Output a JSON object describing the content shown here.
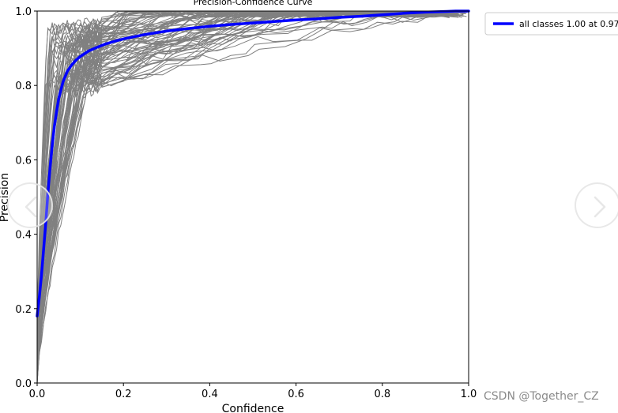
{
  "chart_data": {
    "type": "line",
    "title": "Precision-Confidence Curve",
    "xlabel": "Confidence",
    "ylabel": "Precision",
    "xlim": [
      0.0,
      1.0
    ],
    "ylim": [
      0.0,
      1.0
    ],
    "xticks": [
      "0.0",
      "0.2",
      "0.4",
      "0.6",
      "0.8",
      "1.0"
    ],
    "yticks": [
      "0.0",
      "0.2",
      "0.4",
      "0.6",
      "0.8",
      "1.0"
    ],
    "grid": false,
    "legend_position": "outside-top-right",
    "legend": [
      "all classes 1.00 at 0.97"
    ],
    "per_class_curves": {
      "count": 80,
      "color": "#808080",
      "description_values": {
        "start_precision_range": [
          0.0,
          0.2
        ],
        "reach_0_8_confidence_range": [
          0.02,
          0.12
        ],
        "reach_1_0_confidence_range": [
          0.2,
          0.97
        ]
      }
    },
    "series": [
      {
        "name": "all classes 1.00 at 0.97",
        "color": "#0000ff",
        "x": [
          0.0,
          0.005,
          0.01,
          0.015,
          0.02,
          0.025,
          0.03,
          0.035,
          0.04,
          0.045,
          0.05,
          0.06,
          0.07,
          0.08,
          0.09,
          0.1,
          0.12,
          0.14,
          0.16,
          0.18,
          0.2,
          0.25,
          0.3,
          0.35,
          0.4,
          0.45,
          0.5,
          0.55,
          0.6,
          0.65,
          0.7,
          0.75,
          0.8,
          0.85,
          0.9,
          0.95,
          0.97,
          1.0
        ],
        "y": [
          0.18,
          0.23,
          0.29,
          0.36,
          0.43,
          0.51,
          0.58,
          0.64,
          0.69,
          0.73,
          0.765,
          0.81,
          0.838,
          0.855,
          0.868,
          0.878,
          0.893,
          0.903,
          0.912,
          0.919,
          0.925,
          0.937,
          0.946,
          0.953,
          0.959,
          0.964,
          0.968,
          0.972,
          0.976,
          0.979,
          0.983,
          0.986,
          0.99,
          0.994,
          0.997,
          0.999,
          1.0,
          1.0
        ]
      }
    ]
  },
  "ui": {
    "watermark": "CSDN @Together_CZ"
  }
}
